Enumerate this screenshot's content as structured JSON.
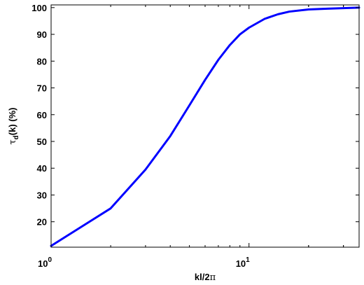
{
  "chart_data": {
    "type": "line",
    "xscale": "log",
    "xlim": [
      1,
      36
    ],
    "ylim": [
      10.5,
      101
    ],
    "xticks": [
      {
        "value": 1,
        "base": "10",
        "exp": "0"
      },
      {
        "value": 10,
        "base": "10",
        "exp": "1"
      }
    ],
    "yticks": [
      20,
      30,
      40,
      50,
      60,
      70,
      80,
      90,
      100
    ],
    "xlabel": {
      "main": "kl/2",
      "sym": "π"
    },
    "ylabel": {
      "sym": "τ",
      "sub": "d",
      "rest": "(k) (%)"
    },
    "grid": false,
    "series": [
      {
        "color": "#0000ff",
        "x": [
          1,
          2,
          3,
          4,
          5,
          6,
          7,
          8,
          9,
          10,
          12,
          14,
          16,
          20,
          25,
          30,
          36
        ],
        "y": [
          11,
          25,
          39.5,
          52,
          63.5,
          73,
          80.5,
          86,
          90,
          92.5,
          95.8,
          97.5,
          98.5,
          99.3,
          99.6,
          99.8,
          100
        ]
      }
    ]
  }
}
